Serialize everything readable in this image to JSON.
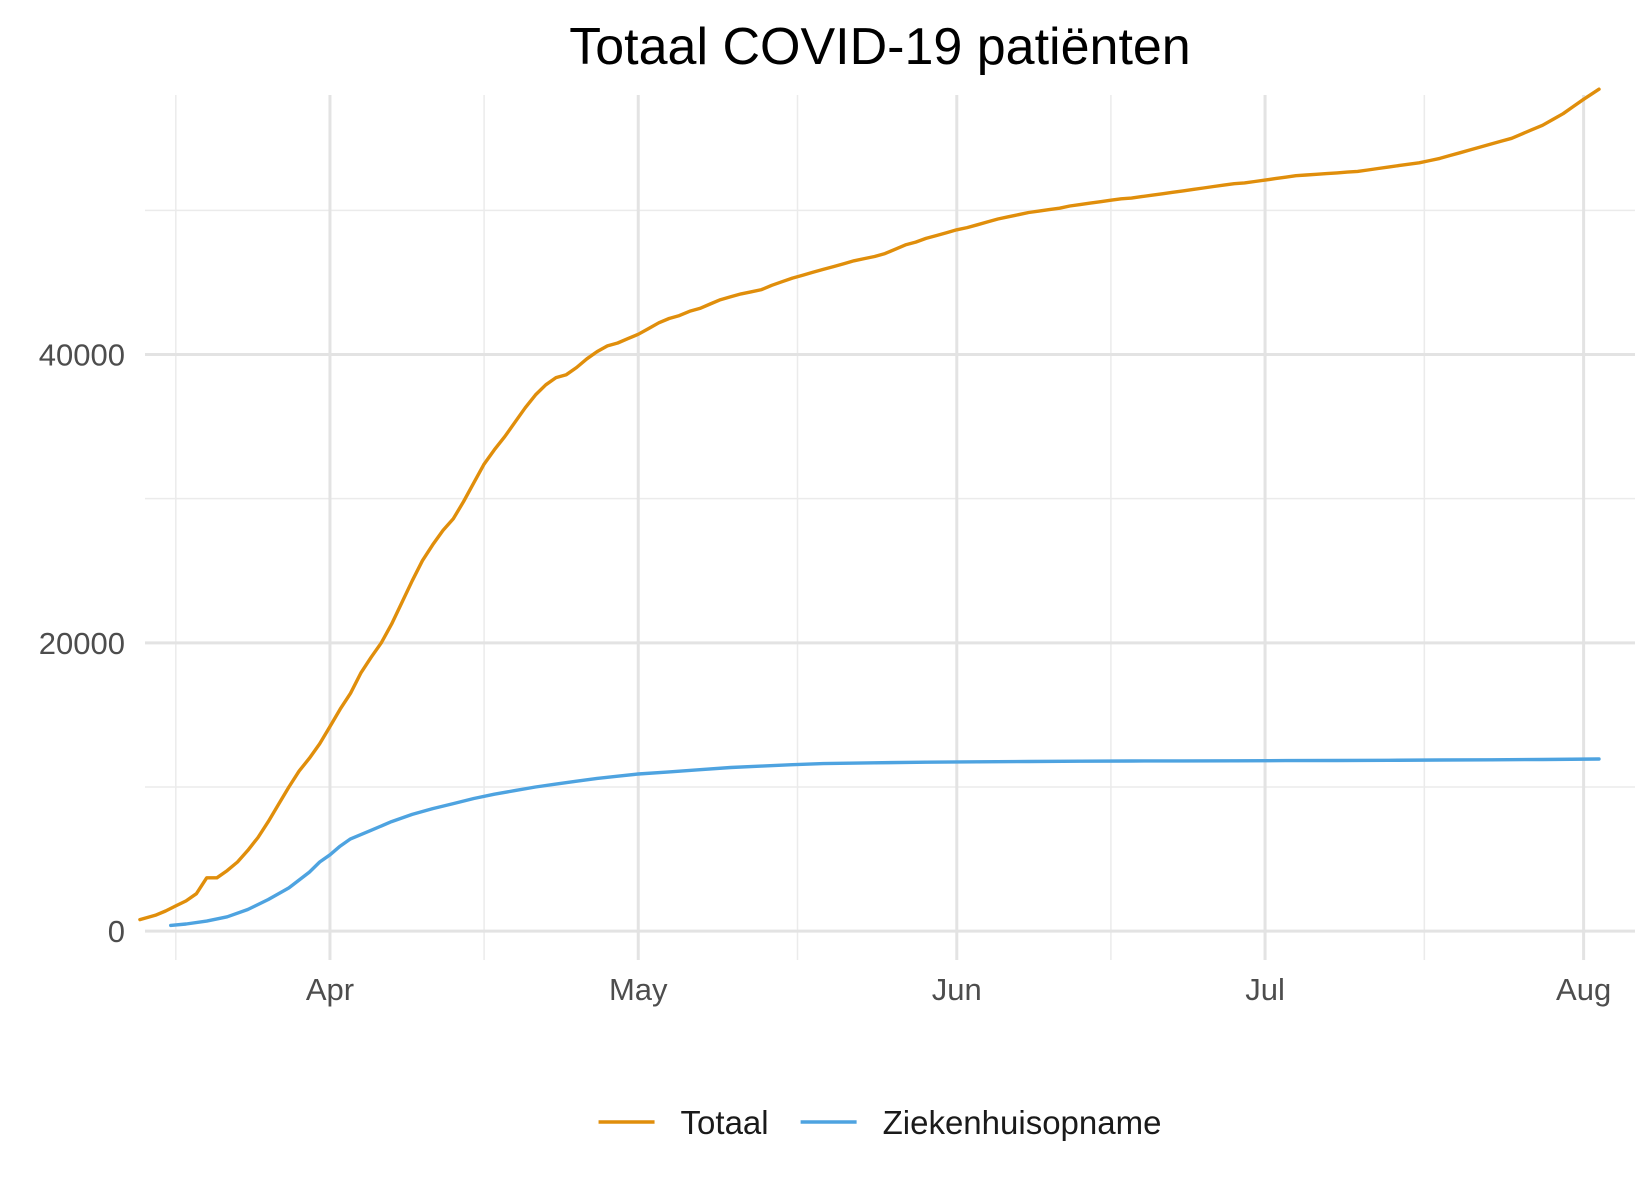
{
  "chart_data": {
    "type": "line",
    "title": "Totaal COVID-19 patiënten",
    "xlabel": "",
    "ylabel": "",
    "x_unit": "day-of-year 2020",
    "x_range": [
      74,
      219
    ],
    "x_ticks": [
      {
        "day": 92,
        "label": "Apr"
      },
      {
        "day": 122,
        "label": "May"
      },
      {
        "day": 153,
        "label": "Jun"
      },
      {
        "day": 183,
        "label": "Jul"
      },
      {
        "day": 214,
        "label": "Aug"
      }
    ],
    "x_minor_ticks": [
      77,
      107,
      137.5,
      168,
      198.5
    ],
    "ylim": [
      -2000,
      58000
    ],
    "y_ticks": [
      0,
      20000,
      40000
    ],
    "y_minor_ticks": [
      10000,
      30000,
      50000
    ],
    "legend_position": "bottom",
    "series": [
      {
        "name": "Totaal",
        "color": "#E08E0B",
        "points": [
          [
            73.5,
            800
          ],
          [
            75,
            1100
          ],
          [
            76,
            1400
          ],
          [
            77,
            1750
          ],
          [
            78,
            2100
          ],
          [
            79,
            2600
          ],
          [
            80,
            3700
          ],
          [
            81,
            3700
          ],
          [
            82,
            4200
          ],
          [
            83,
            4800
          ],
          [
            84,
            5600
          ],
          [
            85,
            6500
          ],
          [
            86,
            7600
          ],
          [
            87,
            8800
          ],
          [
            88,
            10000
          ],
          [
            89,
            11100
          ],
          [
            90,
            12000
          ],
          [
            91,
            13000
          ],
          [
            92,
            14200
          ],
          [
            93,
            15400
          ],
          [
            94,
            16500
          ],
          [
            95,
            17900
          ],
          [
            96,
            19000
          ],
          [
            97,
            20000
          ],
          [
            98,
            21300
          ],
          [
            99,
            22800
          ],
          [
            100,
            24300
          ],
          [
            101,
            25700
          ],
          [
            102,
            26800
          ],
          [
            103,
            27800
          ],
          [
            104,
            28600
          ],
          [
            105,
            29800
          ],
          [
            106,
            31100
          ],
          [
            107,
            32400
          ],
          [
            108,
            33400
          ],
          [
            109,
            34300
          ],
          [
            110,
            35300
          ],
          [
            111,
            36300
          ],
          [
            112,
            37200
          ],
          [
            113,
            37900
          ],
          [
            114,
            38400
          ],
          [
            115,
            38600
          ],
          [
            116,
            39100
          ],
          [
            117,
            39700
          ],
          [
            118,
            40200
          ],
          [
            119,
            40600
          ],
          [
            120,
            40800
          ],
          [
            121,
            41100
          ],
          [
            122,
            41400
          ],
          [
            123,
            41800
          ],
          [
            124,
            42200
          ],
          [
            125,
            42500
          ],
          [
            126,
            42700
          ],
          [
            127,
            43000
          ],
          [
            128,
            43200
          ],
          [
            129,
            43500
          ],
          [
            130,
            43800
          ],
          [
            131,
            44000
          ],
          [
            132,
            44200
          ],
          [
            133,
            44350
          ],
          [
            134,
            44500
          ],
          [
            135,
            44800
          ],
          [
            136,
            45050
          ],
          [
            137,
            45300
          ],
          [
            138,
            45500
          ],
          [
            139,
            45700
          ],
          [
            140,
            45900
          ],
          [
            141,
            46100
          ],
          [
            142,
            46300
          ],
          [
            143,
            46500
          ],
          [
            144,
            46650
          ],
          [
            145,
            46800
          ],
          [
            146,
            47000
          ],
          [
            147,
            47300
          ],
          [
            148,
            47600
          ],
          [
            149,
            47800
          ],
          [
            150,
            48050
          ],
          [
            151,
            48250
          ],
          [
            152,
            48450
          ],
          [
            153,
            48650
          ],
          [
            154,
            48800
          ],
          [
            155,
            49000
          ],
          [
            156,
            49200
          ],
          [
            157,
            49400
          ],
          [
            158,
            49550
          ],
          [
            159,
            49700
          ],
          [
            160,
            49850
          ],
          [
            161,
            49950
          ],
          [
            162,
            50050
          ],
          [
            163,
            50150
          ],
          [
            164,
            50300
          ],
          [
            165,
            50400
          ],
          [
            166,
            50500
          ],
          [
            167,
            50600
          ],
          [
            168,
            50700
          ],
          [
            169,
            50800
          ],
          [
            170,
            50850
          ],
          [
            171,
            50950
          ],
          [
            172,
            51050
          ],
          [
            173,
            51150
          ],
          [
            174,
            51250
          ],
          [
            175,
            51350
          ],
          [
            176,
            51450
          ],
          [
            177,
            51550
          ],
          [
            178,
            51650
          ],
          [
            179,
            51750
          ],
          [
            180,
            51850
          ],
          [
            181,
            51900
          ],
          [
            182,
            52000
          ],
          [
            183,
            52100
          ],
          [
            184,
            52200
          ],
          [
            185,
            52300
          ],
          [
            186,
            52400
          ],
          [
            187,
            52450
          ],
          [
            188,
            52500
          ],
          [
            189,
            52550
          ],
          [
            190,
            52600
          ],
          [
            191,
            52650
          ],
          [
            192,
            52700
          ],
          [
            193,
            52800
          ],
          [
            194,
            52900
          ],
          [
            195,
            53000
          ],
          [
            196,
            53100
          ],
          [
            197,
            53200
          ],
          [
            198,
            53300
          ],
          [
            199,
            53450
          ],
          [
            200,
            53600
          ],
          [
            201,
            53800
          ],
          [
            202,
            54000
          ],
          [
            203,
            54200
          ],
          [
            204,
            54400
          ],
          [
            205,
            54600
          ],
          [
            206,
            54800
          ],
          [
            207,
            55000
          ],
          [
            208,
            55300
          ],
          [
            209,
            55600
          ],
          [
            210,
            55900
          ],
          [
            211,
            56300
          ],
          [
            212,
            56700
          ],
          [
            213,
            57200
          ],
          [
            214,
            57700
          ],
          [
            215.5,
            58400
          ]
        ]
      },
      {
        "name": "Ziekenhuisopname",
        "color": "#4EA3E0",
        "points": [
          [
            76.5,
            400
          ],
          [
            78,
            500
          ],
          [
            80,
            700
          ],
          [
            82,
            1000
          ],
          [
            84,
            1500
          ],
          [
            86,
            2200
          ],
          [
            88,
            3000
          ],
          [
            90,
            4100
          ],
          [
            91,
            4800
          ],
          [
            92,
            5300
          ],
          [
            93,
            5900
          ],
          [
            94,
            6400
          ],
          [
            96,
            7000
          ],
          [
            98,
            7600
          ],
          [
            100,
            8100
          ],
          [
            102,
            8500
          ],
          [
            104,
            8850
          ],
          [
            106,
            9200
          ],
          [
            108,
            9500
          ],
          [
            110,
            9750
          ],
          [
            112,
            10000
          ],
          [
            114,
            10200
          ],
          [
            116,
            10400
          ],
          [
            118,
            10600
          ],
          [
            120,
            10750
          ],
          [
            122,
            10900
          ],
          [
            125,
            11050
          ],
          [
            128,
            11200
          ],
          [
            131,
            11350
          ],
          [
            134,
            11450
          ],
          [
            137,
            11550
          ],
          [
            140,
            11620
          ],
          [
            145,
            11680
          ],
          [
            150,
            11720
          ],
          [
            155,
            11750
          ],
          [
            160,
            11770
          ],
          [
            165,
            11790
          ],
          [
            170,
            11800
          ],
          [
            175,
            11810
          ],
          [
            180,
            11820
          ],
          [
            185,
            11830
          ],
          [
            190,
            11840
          ],
          [
            195,
            11850
          ],
          [
            200,
            11870
          ],
          [
            205,
            11890
          ],
          [
            210,
            11910
          ],
          [
            215.5,
            11940
          ]
        ]
      }
    ]
  }
}
